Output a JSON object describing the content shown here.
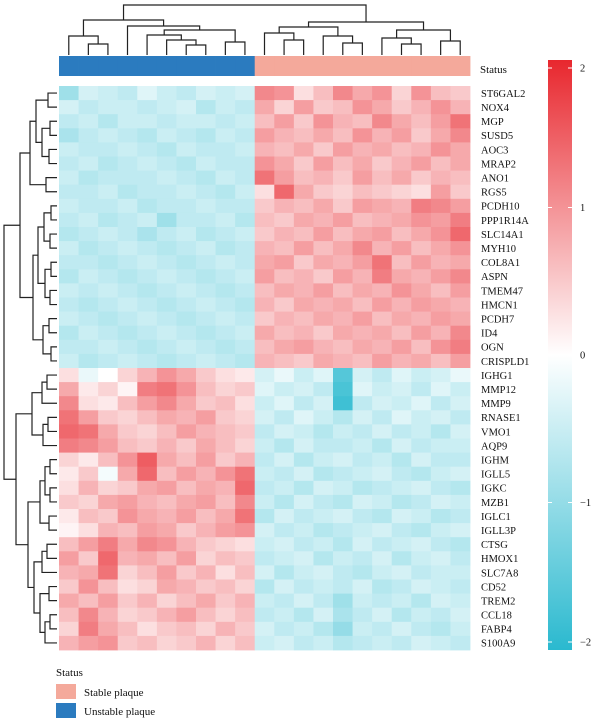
{
  "chart_data": {
    "type": "heatmap",
    "status_label": "Status",
    "genes": [
      "ST6GAL2",
      "NOX4",
      "MGP",
      "SUSD5",
      "AOC3",
      "MRAP2",
      "ANO1",
      "RGS5",
      "PCDH10",
      "PPP1R14A",
      "SLC14A1",
      "MYH10",
      "COL8A1",
      "ASPN",
      "TMEM47",
      "HMCN1",
      "PCDH7",
      "ID4",
      "OGN",
      "CRISPLD1",
      "IGHG1",
      "MMP12",
      "MMP9",
      "RNASE1",
      "VMO1",
      "AQP9",
      "IGHM",
      "IGLL5",
      "IGKC",
      "MZB1",
      "IGLC1",
      "IGLL3P",
      "CTSG",
      "HMOX1",
      "SLC7A8",
      "CD52",
      "TREM2",
      "CCL18",
      "FABP4",
      "S100A9"
    ],
    "sample_groups": [
      "Unstable plaque",
      "Unstable plaque",
      "Unstable plaque",
      "Unstable plaque",
      "Unstable plaque",
      "Unstable plaque",
      "Unstable plaque",
      "Unstable plaque",
      "Unstable plaque",
      "Unstable plaque",
      "Stable plaque",
      "Stable plaque",
      "Stable plaque",
      "Stable plaque",
      "Stable plaque",
      "Stable plaque",
      "Stable plaque",
      "Stable plaque",
      "Stable plaque",
      "Stable plaque",
      "Stable plaque"
    ],
    "values": [
      [
        -0.9,
        -0.4,
        -0.5,
        -0.6,
        -0.3,
        -0.5,
        -0.6,
        -0.4,
        -0.5,
        -0.4,
        1.1,
        1.0,
        0.3,
        0.6,
        1.1,
        0.8,
        1.0,
        0.4,
        1.0,
        0.6,
        0.5
      ],
      [
        -0.4,
        -0.6,
        -0.5,
        -0.5,
        -0.6,
        -0.5,
        -0.4,
        -0.7,
        -0.5,
        -0.6,
        0.8,
        0.4,
        0.9,
        0.5,
        0.6,
        1.0,
        0.8,
        0.5,
        0.7,
        1.0,
        0.7
      ],
      [
        -0.6,
        -0.5,
        -0.7,
        -0.5,
        -0.5,
        -0.6,
        -0.5,
        -0.5,
        -0.6,
        -0.5,
        0.6,
        0.9,
        0.5,
        1.0,
        0.7,
        0.6,
        1.1,
        0.8,
        0.6,
        0.9,
        1.3
      ],
      [
        -0.8,
        -0.6,
        -0.5,
        -0.6,
        -0.7,
        -0.5,
        -0.6,
        -0.7,
        -0.5,
        -0.6,
        0.9,
        0.7,
        0.6,
        0.8,
        0.6,
        1.0,
        0.7,
        0.9,
        0.5,
        0.8,
        1.1
      ],
      [
        -0.5,
        -0.6,
        -0.6,
        -0.5,
        -0.6,
        -0.7,
        -0.5,
        -0.6,
        -0.6,
        -0.5,
        0.7,
        0.6,
        0.8,
        0.5,
        0.9,
        0.7,
        0.8,
        0.6,
        0.7,
        1.0,
        0.8
      ],
      [
        -0.6,
        -0.5,
        -0.7,
        -0.6,
        -0.5,
        -0.6,
        -0.7,
        -0.5,
        -0.6,
        -0.6,
        1.0,
        0.8,
        0.5,
        0.9,
        0.6,
        0.8,
        0.5,
        0.7,
        0.9,
        0.6,
        0.8
      ],
      [
        -0.5,
        -0.7,
        -0.6,
        -0.6,
        -0.6,
        -0.5,
        -0.6,
        -0.7,
        -0.5,
        -0.6,
        1.3,
        0.9,
        0.6,
        0.7,
        0.5,
        0.9,
        0.6,
        0.8,
        0.5,
        0.7,
        0.6
      ],
      [
        -0.6,
        -0.6,
        -0.5,
        -0.7,
        -0.6,
        -0.6,
        -0.5,
        -0.6,
        -0.7,
        -0.5,
        0.3,
        1.4,
        0.8,
        0.5,
        0.4,
        0.6,
        0.5,
        0.4,
        0.3,
        0.9,
        0.5
      ],
      [
        -0.5,
        -0.6,
        -0.6,
        -0.5,
        -0.7,
        -0.6,
        -0.6,
        -0.5,
        -0.6,
        -0.6,
        0.5,
        0.7,
        0.6,
        0.8,
        0.5,
        0.9,
        0.8,
        0.7,
        1.2,
        1.1,
        0.9
      ],
      [
        -0.6,
        -0.5,
        -0.7,
        -0.6,
        -0.5,
        -0.9,
        -0.6,
        -0.6,
        -0.5,
        -0.7,
        0.6,
        0.5,
        0.8,
        0.7,
        0.9,
        0.6,
        0.7,
        0.8,
        1.0,
        0.9,
        1.2
      ],
      [
        -0.7,
        -0.6,
        -0.5,
        -0.6,
        -0.8,
        -0.6,
        -0.5,
        -0.7,
        -0.6,
        -0.5,
        0.5,
        0.7,
        0.6,
        0.9,
        0.6,
        0.8,
        0.9,
        0.6,
        0.8,
        1.0,
        1.4
      ],
      [
        -0.5,
        -0.7,
        -0.6,
        -0.5,
        -0.6,
        -0.7,
        -0.6,
        -0.5,
        -0.7,
        -0.6,
        0.7,
        0.6,
        0.9,
        0.6,
        0.8,
        1.1,
        0.7,
        0.9,
        0.6,
        0.8,
        1.0
      ],
      [
        -0.6,
        -0.6,
        -0.7,
        -0.6,
        -0.5,
        -0.6,
        -0.7,
        -0.6,
        -0.5,
        -0.6,
        0.8,
        0.9,
        0.5,
        0.8,
        0.7,
        0.9,
        1.3,
        0.6,
        0.9,
        0.7,
        0.8
      ],
      [
        -0.7,
        -0.5,
        -0.6,
        -0.7,
        -0.6,
        -0.5,
        -0.6,
        -0.7,
        -0.6,
        -0.5,
        0.9,
        0.6,
        0.7,
        0.5,
        0.9,
        0.7,
        1.2,
        0.8,
        0.7,
        0.9,
        1.1
      ],
      [
        -0.5,
        -0.6,
        -0.5,
        -0.6,
        -0.7,
        -0.6,
        -0.5,
        -0.6,
        -0.7,
        -0.6,
        0.6,
        0.8,
        0.7,
        0.9,
        0.6,
        0.8,
        0.7,
        1.0,
        0.8,
        0.6,
        0.9
      ],
      [
        -0.6,
        -0.7,
        -0.6,
        -0.5,
        -0.6,
        -0.7,
        -0.6,
        -0.5,
        -0.6,
        -0.7,
        0.7,
        0.5,
        0.8,
        0.7,
        0.8,
        0.6,
        0.9,
        0.7,
        0.9,
        0.8,
        0.7
      ],
      [
        -0.5,
        -0.6,
        -0.7,
        -0.6,
        -0.5,
        -0.6,
        -0.7,
        -0.6,
        -0.5,
        -0.6,
        0.5,
        0.7,
        0.6,
        0.8,
        0.7,
        0.9,
        0.6,
        0.8,
        0.7,
        0.9,
        0.8
      ],
      [
        -0.7,
        -0.5,
        -0.6,
        -0.7,
        -0.6,
        -0.5,
        -0.6,
        -0.7,
        -0.6,
        -0.5,
        0.8,
        0.6,
        0.7,
        0.5,
        0.8,
        0.7,
        0.8,
        0.6,
        0.9,
        0.7,
        1.1
      ],
      [
        -0.6,
        -0.6,
        -0.5,
        -0.6,
        -0.7,
        -0.6,
        -0.5,
        -0.6,
        -0.7,
        -0.6,
        0.6,
        0.8,
        0.9,
        0.7,
        0.6,
        0.8,
        0.7,
        0.9,
        0.6,
        1.0,
        1.2
      ],
      [
        -0.5,
        -0.7,
        -0.6,
        -0.5,
        -0.6,
        -0.7,
        -0.6,
        -0.5,
        -0.6,
        -0.7,
        0.7,
        0.6,
        0.5,
        0.8,
        0.7,
        0.6,
        0.9,
        0.7,
        0.8,
        0.6,
        0.9
      ],
      [
        0.3,
        -0.2,
        0.0,
        0.4,
        0.7,
        1.0,
        0.8,
        0.5,
        0.3,
        0.2,
        -0.4,
        -0.2,
        -0.5,
        -0.3,
        -1.6,
        -0.4,
        -0.6,
        -0.3,
        -0.5,
        -0.4,
        -0.2
      ],
      [
        0.8,
        0.2,
        0.4,
        0.1,
        1.2,
        1.3,
        1.0,
        0.6,
        0.4,
        0.5,
        -0.3,
        -0.5,
        -0.4,
        -0.6,
        -1.7,
        -0.3,
        -0.5,
        -0.4,
        -0.6,
        -0.3,
        -0.5
      ],
      [
        1.1,
        0.3,
        0.2,
        0.6,
        0.9,
        1.1,
        0.8,
        0.5,
        0.6,
        0.3,
        -0.5,
        -0.3,
        -0.6,
        -0.4,
        -1.8,
        -0.6,
        -0.4,
        -0.5,
        -0.3,
        -0.6,
        -0.4
      ],
      [
        1.3,
        0.9,
        0.5,
        0.4,
        0.6,
        0.8,
        0.7,
        0.9,
        0.5,
        0.4,
        -0.4,
        -0.6,
        -0.3,
        -0.5,
        -0.7,
        -0.4,
        -0.6,
        -0.3,
        -0.5,
        -0.4,
        -0.6
      ],
      [
        1.4,
        1.3,
        0.8,
        0.5,
        0.4,
        0.6,
        0.9,
        0.7,
        0.6,
        0.5,
        -0.6,
        -0.4,
        -0.5,
        -0.7,
        -0.5,
        -0.6,
        -0.4,
        -0.6,
        -0.5,
        -0.7,
        -0.4
      ],
      [
        1.2,
        1.1,
        0.9,
        0.6,
        0.5,
        0.7,
        0.5,
        0.8,
        0.6,
        0.4,
        -0.5,
        -0.7,
        -0.4,
        -0.6,
        -0.6,
        -0.5,
        -0.7,
        -0.4,
        -0.6,
        -0.5,
        -0.5
      ],
      [
        0.4,
        0.2,
        0.6,
        1.0,
        1.5,
        0.8,
        0.6,
        0.9,
        0.5,
        0.7,
        -0.6,
        -0.4,
        -0.7,
        -0.5,
        -0.4,
        -0.6,
        -0.5,
        -0.7,
        -0.4,
        -0.6,
        -0.6
      ],
      [
        0.2,
        0.5,
        -0.1,
        0.8,
        1.4,
        0.6,
        0.9,
        0.7,
        1.0,
        1.3,
        -0.5,
        -0.6,
        -0.4,
        -0.7,
        -0.6,
        -0.5,
        -0.4,
        -0.6,
        -0.7,
        -0.5,
        -0.4
      ],
      [
        0.3,
        0.7,
        0.4,
        0.5,
        0.8,
        0.9,
        0.6,
        0.8,
        0.7,
        1.4,
        -0.6,
        -0.5,
        -0.7,
        -0.4,
        -0.5,
        -0.7,
        -0.6,
        -0.5,
        -0.4,
        -0.6,
        -0.7
      ],
      [
        0.5,
        0.4,
        0.8,
        0.9,
        0.7,
        0.6,
        0.8,
        0.9,
        0.6,
        1.1,
        -0.5,
        -0.7,
        -0.4,
        -0.6,
        -0.7,
        -0.4,
        -0.5,
        -0.7,
        -0.6,
        -0.4,
        -0.5
      ],
      [
        0.2,
        0.6,
        0.5,
        1.0,
        0.8,
        0.7,
        0.9,
        0.6,
        0.8,
        1.3,
        -0.7,
        -0.4,
        -0.6,
        -0.5,
        -0.4,
        -0.6,
        -0.7,
        -0.4,
        -0.5,
        -0.7,
        -0.6
      ],
      [
        0.1,
        0.3,
        0.7,
        0.6,
        0.9,
        0.8,
        0.5,
        0.7,
        0.9,
        1.0,
        -0.4,
        -0.6,
        -0.5,
        -0.7,
        -0.6,
        -0.5,
        -0.4,
        -0.6,
        -0.7,
        -0.5,
        -0.4
      ],
      [
        0.6,
        0.9,
        1.2,
        0.8,
        1.1,
        1.0,
        0.7,
        0.5,
        0.4,
        0.3,
        -0.5,
        -0.4,
        -0.6,
        -0.5,
        -0.7,
        -0.4,
        -0.6,
        -0.5,
        -0.4,
        -0.6,
        -0.7
      ],
      [
        0.9,
        0.5,
        1.4,
        0.7,
        0.8,
        0.6,
        0.9,
        0.4,
        0.6,
        0.5,
        -0.6,
        -0.5,
        -0.4,
        -0.7,
        -0.5,
        -0.6,
        -0.4,
        -0.7,
        -0.5,
        -0.4,
        -0.6
      ],
      [
        0.7,
        0.8,
        1.3,
        0.4,
        0.6,
        0.9,
        0.5,
        0.7,
        0.3,
        0.6,
        -0.4,
        -0.7,
        -0.5,
        -0.4,
        -0.6,
        -0.7,
        -0.5,
        -0.4,
        -0.6,
        -0.5,
        -0.5
      ],
      [
        0.5,
        1.0,
        0.6,
        0.3,
        0.4,
        0.8,
        0.7,
        0.5,
        0.6,
        0.4,
        -0.7,
        -0.4,
        -0.6,
        -0.5,
        -0.6,
        -0.4,
        -0.7,
        -0.6,
        -0.4,
        -0.5,
        -0.6
      ],
      [
        0.8,
        0.6,
        0.9,
        0.5,
        0.7,
        0.4,
        0.6,
        0.8,
        0.5,
        0.7,
        -0.5,
        -0.6,
        -0.4,
        -0.6,
        -0.9,
        -0.5,
        -0.6,
        -0.5,
        -0.7,
        -0.4,
        -0.5
      ],
      [
        0.6,
        1.1,
        0.7,
        0.4,
        0.5,
        0.7,
        0.9,
        0.6,
        0.4,
        0.6,
        -0.6,
        -0.5,
        -0.7,
        -0.4,
        -0.8,
        -0.6,
        -0.4,
        -0.7,
        -0.5,
        -0.6,
        -0.4
      ],
      [
        0.4,
        1.2,
        0.8,
        0.6,
        0.3,
        0.5,
        0.6,
        0.4,
        0.7,
        0.5,
        -0.4,
        -0.6,
        -0.5,
        -0.7,
        -1.0,
        -0.5,
        -0.6,
        -0.4,
        -0.6,
        -0.7,
        -0.5
      ],
      [
        0.7,
        0.9,
        1.0,
        0.5,
        0.6,
        0.4,
        0.5,
        0.7,
        0.4,
        0.6,
        -0.5,
        -0.4,
        -0.6,
        -0.5,
        -0.7,
        -0.6,
        -0.5,
        -0.6,
        -0.4,
        -0.5,
        -0.6
      ]
    ],
    "color_scale": {
      "min": -2,
      "max": 2,
      "low_color": "#2ab9cf",
      "mid_color": "#ffffff",
      "high_color": "#e8272e"
    },
    "colorbar_ticks": [
      "2",
      "1",
      "0",
      "−1",
      "−2"
    ],
    "legend": {
      "title": "Status",
      "items": [
        {
          "label": "Stable plaque",
          "color": "#f4a99b"
        },
        {
          "label": "Unstable plaque",
          "color": "#2b7bbf"
        }
      ]
    },
    "group_colors": {
      "Stable plaque": "#f4a99b",
      "Unstable plaque": "#2b7bbf"
    }
  }
}
